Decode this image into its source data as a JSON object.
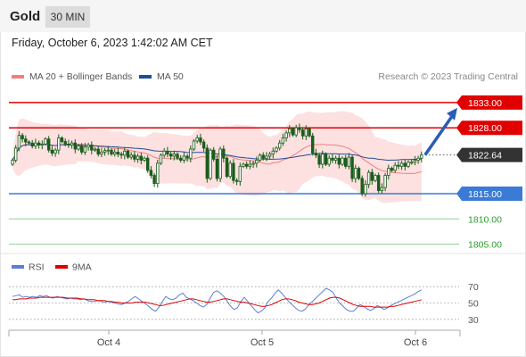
{
  "header": {
    "title": "Gold",
    "interval": "30 MIN"
  },
  "datetime": "Friday, October 6, 2023 1:42:02 AM CET",
  "legend": {
    "ma20": "MA 20 + Bollinger Bands",
    "ma50": "MA 50",
    "credit": "Research © 2023 Trading Central"
  },
  "rsi_legend": {
    "rsi": "RSI",
    "ma9": "9MA"
  },
  "colors": {
    "resistance": "#e00000",
    "support": "#3a7bd5",
    "target": "#2a9d2a",
    "ma20": "#f08080",
    "ma50": "#1f4e96",
    "band": "#fde0e0",
    "candle": "#1a5d1a",
    "arrow": "#2b5cb8",
    "rsi": "#5b7fd6",
    "rsi_ma": "#e00000",
    "current_price_box": "#333333"
  },
  "chart_data": [
    {
      "type": "candlestick",
      "ylim": [
        1803.0,
        1836.5
      ],
      "levels": [
        {
          "value": 1833.0,
          "label": "1833.00",
          "kind": "resistance"
        },
        {
          "value": 1828.0,
          "label": "1828.00",
          "kind": "resistance"
        },
        {
          "value": 1822.64,
          "label": "1822.64",
          "kind": "current"
        },
        {
          "value": 1815.0,
          "label": "1815.00",
          "kind": "support"
        },
        {
          "value": 1810.0,
          "label": "1810.00",
          "kind": "target"
        },
        {
          "value": 1805.0,
          "label": "1805.00",
          "kind": "target"
        }
      ],
      "x_ticks": [
        "Oct 4",
        "Oct 5",
        "Oct 6"
      ],
      "closes": [
        1821.6,
        1824.0,
        1826.5,
        1825.8,
        1825.2,
        1825.0,
        1824.4,
        1825.0,
        1824.6,
        1824.8,
        1825.8,
        1823.6,
        1823.0,
        1823.6,
        1826.0,
        1825.3,
        1824.8,
        1824.6,
        1825.0,
        1823.8,
        1824.4,
        1823.2,
        1824.2,
        1824.6,
        1823.6,
        1823.8,
        1822.8,
        1823.2,
        1823.5,
        1823.6,
        1822.8,
        1823.2,
        1822.8,
        1822.6,
        1823.4,
        1822.2,
        1822.6,
        1821.8,
        1822.4,
        1821.6,
        1822.0,
        1819.6,
        1818.6,
        1817.0,
        1821.0,
        1822.6,
        1823.4,
        1822.8,
        1822.4,
        1822.8,
        1822.0,
        1821.6,
        1822.4,
        1822.0,
        1823.8,
        1825.4,
        1826.0,
        1825.2,
        1824.0,
        1818.0,
        1823.6,
        1821.8,
        1818.0,
        1823.8,
        1822.0,
        1818.4,
        1821.0,
        1817.6,
        1817.4,
        1820.4,
        1820.8,
        1820.4,
        1820.8,
        1821.0,
        1821.6,
        1822.6,
        1822.0,
        1822.4,
        1822.8,
        1823.4,
        1824.0,
        1825.0,
        1826.0,
        1827.0,
        1827.8,
        1826.6,
        1828.0,
        1827.6,
        1826.4,
        1827.8,
        1826.4,
        1823.0,
        1822.6,
        1820.8,
        1822.8,
        1820.8,
        1822.0,
        1821.6,
        1822.0,
        1820.8,
        1822.0,
        1820.4,
        1822.2,
        1818.0,
        1820.0,
        1818.0,
        1815.0,
        1816.8,
        1819.2,
        1817.6,
        1818.6,
        1815.6,
        1816.2,
        1818.6,
        1820.0,
        1819.6,
        1820.6,
        1820.4,
        1821.0,
        1820.4,
        1821.2,
        1821.2,
        1821.6,
        1822.0,
        1822.64
      ],
      "arrow_target": 1833.0
    },
    {
      "type": "line",
      "name": "RSI",
      "ylim": [
        20,
        80
      ],
      "y_ticks": [
        70,
        50,
        30
      ],
      "rsi": [
        58,
        59,
        60,
        57,
        58,
        57,
        58,
        57,
        59,
        58,
        59,
        57,
        56,
        58,
        57,
        56,
        55,
        56,
        55,
        55,
        54,
        55,
        53,
        52,
        52,
        53,
        52,
        51,
        52,
        51,
        50,
        49,
        48,
        50,
        52,
        55,
        58,
        55,
        52,
        49,
        46,
        42,
        40,
        45,
        52,
        58,
        55,
        54,
        56,
        60,
        62,
        57,
        55,
        53,
        50,
        47,
        45,
        48,
        56,
        63,
        65,
        62,
        58,
        52,
        46,
        42,
        44,
        52,
        57,
        52,
        47,
        42,
        38,
        40,
        44,
        52,
        56,
        62,
        66,
        62,
        57,
        52,
        48,
        44,
        41,
        40,
        43,
        48,
        52,
        56,
        60,
        64,
        68,
        66,
        63,
        56,
        50,
        46,
        42,
        40,
        40,
        44,
        48,
        46,
        43,
        41,
        43,
        47,
        45,
        42,
        44,
        47,
        49,
        51,
        53,
        55,
        57,
        59,
        61,
        64,
        66
      ],
      "rsi_ma": [
        54,
        54,
        55,
        55,
        55,
        56,
        56,
        56,
        57,
        57,
        57,
        57,
        57,
        57,
        57,
        57,
        56,
        56,
        56,
        56,
        55,
        55,
        54,
        54,
        54,
        53,
        53,
        53,
        52,
        52,
        51,
        51,
        50,
        50,
        50,
        50,
        51,
        51,
        51,
        51,
        50,
        49,
        48,
        47,
        47,
        48,
        49,
        50,
        51,
        52,
        53,
        54,
        55,
        55,
        54,
        53,
        52,
        51,
        51,
        52,
        53,
        54,
        55,
        55,
        54,
        53,
        52,
        51,
        51,
        50,
        49,
        48,
        47,
        46,
        46,
        47,
        48,
        50,
        52,
        54,
        55,
        55,
        54,
        53,
        51,
        50,
        49,
        48,
        48,
        49,
        50,
        52,
        54,
        56,
        57,
        57,
        56,
        54,
        52,
        50,
        48,
        47,
        46,
        46,
        46,
        46,
        45,
        45,
        45,
        45,
        45,
        46,
        46,
        47,
        48,
        49,
        50,
        51,
        52,
        53,
        54
      ]
    }
  ]
}
